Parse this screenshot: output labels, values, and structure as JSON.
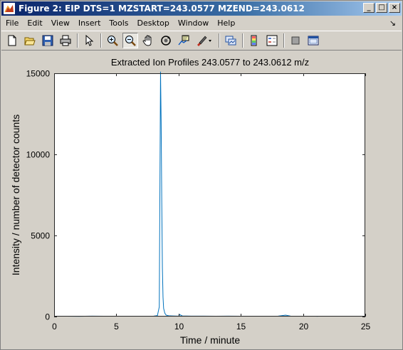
{
  "window": {
    "title": "Figure 2: EIP DTS=1 MZSTART=243.0577 MZEND=243.0612",
    "minimize": "_",
    "maximize": "□",
    "close": "×"
  },
  "menu": {
    "items": [
      "File",
      "Edit",
      "View",
      "Insert",
      "Tools",
      "Desktop",
      "Window",
      "Help"
    ],
    "overflow": "↘"
  },
  "toolbar": {
    "buttons": [
      {
        "name": "new-figure-icon"
      },
      {
        "name": "open-file-icon"
      },
      {
        "name": "save-icon"
      },
      {
        "name": "print-icon"
      },
      {
        "name": "edit-plot-icon"
      },
      {
        "name": "zoom-in-icon"
      },
      {
        "name": "zoom-out-icon",
        "pressed": true
      },
      {
        "name": "pan-icon"
      },
      {
        "name": "rotate-3d-icon"
      },
      {
        "name": "data-cursor-icon"
      },
      {
        "name": "brush-icon"
      },
      {
        "name": "link-plot-icon"
      },
      {
        "name": "colorbar-icon"
      },
      {
        "name": "legend-icon"
      },
      {
        "name": "hide-plot-tools-icon"
      },
      {
        "name": "show-plot-tools-icon"
      }
    ]
  },
  "chart_data": {
    "type": "line",
    "title": "Extracted Ion Profiles 243.0577 to 243.0612 m/z",
    "xlabel": "Time / minute",
    "ylabel": "Intensity / number of detector counts",
    "xlim": [
      0,
      25
    ],
    "ylim": [
      0,
      15000
    ],
    "xticks": [
      0,
      5,
      10,
      15,
      20,
      25
    ],
    "yticks": [
      0,
      5000,
      10000,
      15000
    ],
    "grid": false,
    "line_color": "#0072bd",
    "series": [
      {
        "x": [
          0,
          1,
          2,
          3,
          4,
          5,
          6,
          7,
          8,
          8.3,
          8.45,
          8.55,
          8.6,
          8.65,
          8.7,
          8.75,
          8.8,
          8.9,
          9.0,
          9.2,
          9.5,
          10,
          10.1,
          10.3,
          11,
          12,
          13,
          14,
          15,
          16,
          17,
          18,
          18.6,
          19,
          20,
          21,
          21.2
        ],
        "y": [
          20,
          22,
          18,
          25,
          20,
          22,
          24,
          20,
          25,
          60,
          600,
          15100,
          12000,
          7000,
          3000,
          1200,
          500,
          200,
          90,
          50,
          40,
          30,
          120,
          40,
          30,
          25,
          20,
          25,
          20,
          22,
          20,
          25,
          90,
          30,
          22,
          20,
          18
        ]
      }
    ]
  }
}
